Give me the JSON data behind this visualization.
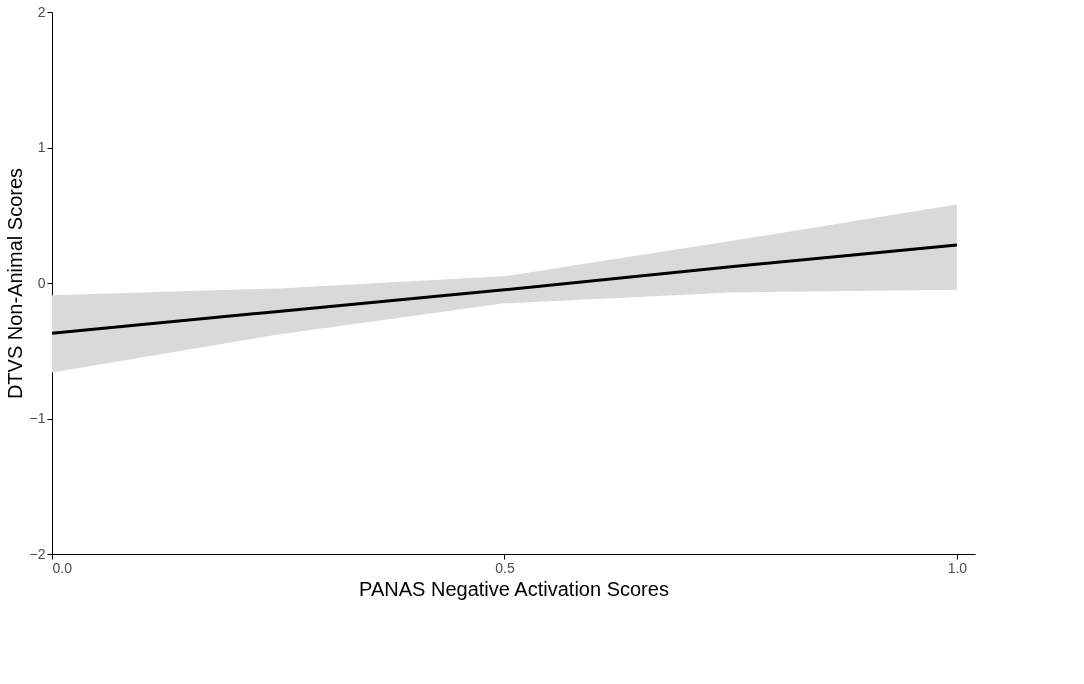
{
  "chart_data": {
    "type": "line",
    "xlabel": "PANAS Negative Activation Scores",
    "ylabel": "DTVS Non-Animal Scores",
    "x": [
      0,
      0.25,
      0.5,
      0.75,
      1.0
    ],
    "series": [
      {
        "color": "#000000",
        "values": [
          -0.37,
          -0.21,
          -0.05,
          0.12,
          0.28
        ],
        "lower": [
          -0.66,
          -0.38,
          -0.15,
          -0.07,
          -0.05
        ],
        "upper": [
          -0.09,
          -0.04,
          0.05,
          0.31,
          0.58
        ]
      }
    ],
    "xlim": [
      0,
      1.02
    ],
    "ylim": [
      -2,
      2
    ],
    "xticks": [
      {
        "value": 0,
        "label": "0.0"
      },
      0.5,
      {
        "value": 1,
        "label": "1.0"
      }
    ],
    "yticks": [
      {
        "value": -2,
        "label": "−2"
      },
      {
        "value": -1,
        "label": "−1"
      },
      0,
      1,
      2
    ],
    "grid": false,
    "marker": "none",
    "line_style": "solid"
  }
}
